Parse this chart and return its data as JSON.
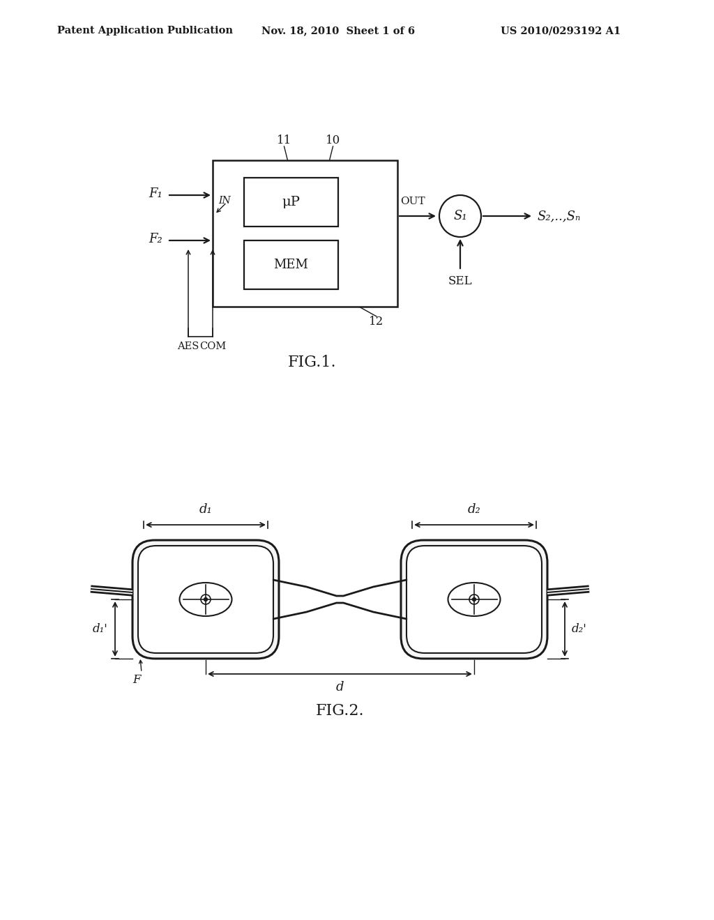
{
  "bg_color": "#ffffff",
  "text_color": "#2a2a2a",
  "header_left": "Patent Application Publication",
  "header_center": "Nov. 18, 2010  Sheet 1 of 6",
  "header_right": "US 2010/0293192 A1",
  "fig1_title": "FIG.1.",
  "fig2_title": "FIG.2."
}
